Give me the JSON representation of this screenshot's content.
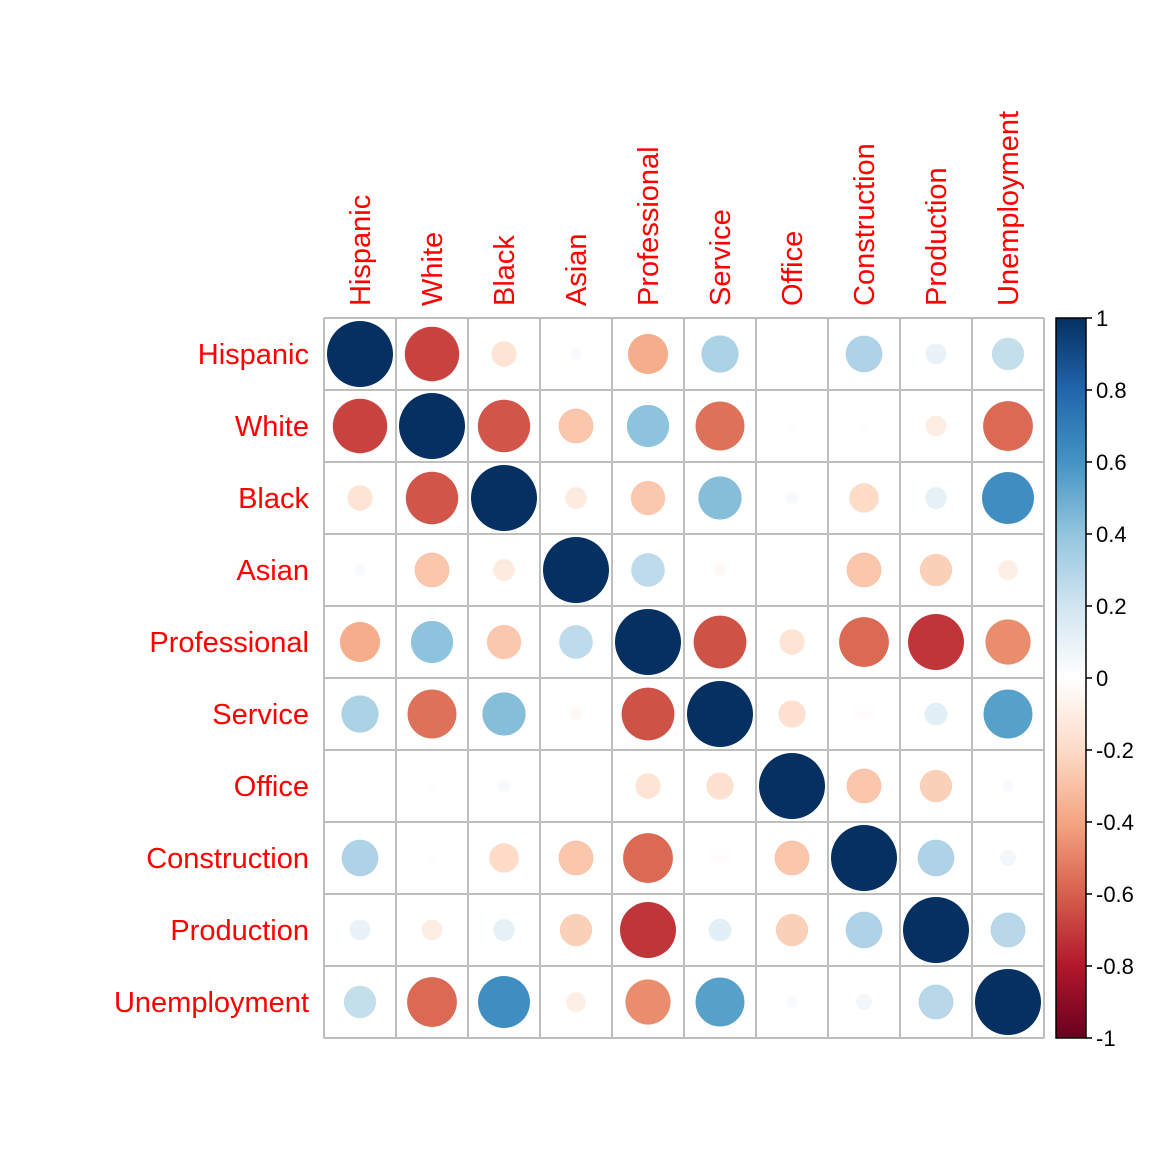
{
  "chart_data": {
    "type": "heatmap",
    "glyph": "circle",
    "variables": [
      "Hispanic",
      "White",
      "Black",
      "Asian",
      "Professional",
      "Service",
      "Office",
      "Construction",
      "Production",
      "Unemployment"
    ],
    "matrix": [
      [
        1.0,
        -0.68,
        -0.15,
        0.03,
        -0.37,
        0.32,
        0.0,
        0.31,
        0.1,
        0.24
      ],
      [
        -0.68,
        1.0,
        -0.63,
        -0.28,
        0.41,
        -0.55,
        -0.01,
        -0.01,
        -0.1,
        -0.57
      ],
      [
        -0.15,
        -0.63,
        1.0,
        -0.11,
        -0.27,
        0.43,
        0.04,
        -0.2,
        0.11,
        0.62
      ],
      [
        0.03,
        -0.28,
        -0.11,
        1.0,
        0.26,
        -0.04,
        0.0,
        -0.28,
        -0.24,
        -0.09
      ],
      [
        -0.37,
        0.41,
        -0.27,
        0.26,
        1.0,
        -0.64,
        -0.15,
        -0.57,
        -0.72,
        -0.47
      ],
      [
        0.32,
        -0.55,
        0.43,
        -0.04,
        -0.64,
        1.0,
        -0.17,
        -0.02,
        0.12,
        0.55
      ],
      [
        0.0,
        -0.01,
        0.04,
        0.0,
        -0.15,
        -0.17,
        1.0,
        -0.28,
        -0.24,
        0.03
      ],
      [
        0.31,
        -0.01,
        -0.2,
        -0.28,
        -0.57,
        -0.02,
        -0.28,
        1.0,
        0.31,
        0.06
      ],
      [
        0.1,
        -0.1,
        0.11,
        -0.24,
        -0.72,
        0.12,
        -0.24,
        0.31,
        1.0,
        0.28
      ],
      [
        0.24,
        -0.57,
        0.62,
        -0.09,
        -0.47,
        0.55,
        0.03,
        0.06,
        0.28,
        1.0
      ]
    ],
    "range": [
      -1,
      1
    ],
    "colorbar_ticks": [
      "1",
      "0.8",
      "0.6",
      "0.4",
      "0.2",
      "0",
      "-0.2",
      "-0.4",
      "-0.6",
      "-0.8",
      "-1"
    ],
    "palette": [
      "#67001F",
      "#B2182B",
      "#D6604D",
      "#F4A582",
      "#FDDBC7",
      "#FFFFFF",
      "#D1E5F0",
      "#92C5DE",
      "#4393C3",
      "#2166AC",
      "#053061"
    ],
    "label_color": "#FF0000",
    "grid_color": "#BEBEBE",
    "legend": "right"
  }
}
